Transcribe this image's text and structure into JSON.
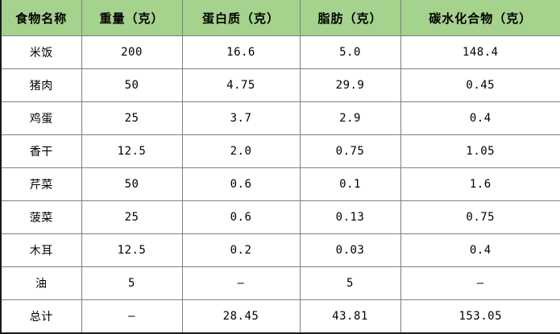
{
  "colors": {
    "header_background": "#a5d28c",
    "grid_line": "#808080",
    "outer_border": "#1a1a1a",
    "cell_background": "#ffffff",
    "text": "#000000"
  },
  "chart_data": {
    "type": "table",
    "title": "",
    "columns": [
      "食物名称",
      "重量（克）",
      "蛋白质（克）",
      "脂肪（克）",
      "碳水化合物（克）"
    ],
    "column_keys": [
      "food-name",
      "weight-g",
      "protein-g",
      "fat-g",
      "carbohydrate-g"
    ],
    "rows": [
      [
        "米饭",
        "200",
        "16.6",
        "5.0",
        "148.4"
      ],
      [
        "猪肉",
        "50",
        "4.75",
        "29.9",
        "0.45"
      ],
      [
        "鸡蛋",
        "25",
        "3.7",
        "2.9",
        "0.4"
      ],
      [
        "香干",
        "12.5",
        "2.0",
        "0.75",
        "1.05"
      ],
      [
        "芹菜",
        "50",
        "0.6",
        "0.1",
        "1.6"
      ],
      [
        "菠菜",
        "25",
        "0.6",
        "0.13",
        "0.75"
      ],
      [
        "木耳",
        "12.5",
        "0.2",
        "0.03",
        "0.4"
      ],
      [
        "油",
        "5",
        "–",
        "5",
        "–"
      ],
      [
        "总计",
        "–",
        "28.45",
        "43.81",
        "153.05"
      ]
    ],
    "row_keys": [
      "rice",
      "pork",
      "egg",
      "dried-tofu",
      "celery",
      "spinach",
      "wood-ear",
      "oil",
      "total"
    ],
    "missing_value_placeholder": "–",
    "layout": {
      "grid": "on",
      "header_row": true,
      "totals_row_label": "总计"
    }
  }
}
